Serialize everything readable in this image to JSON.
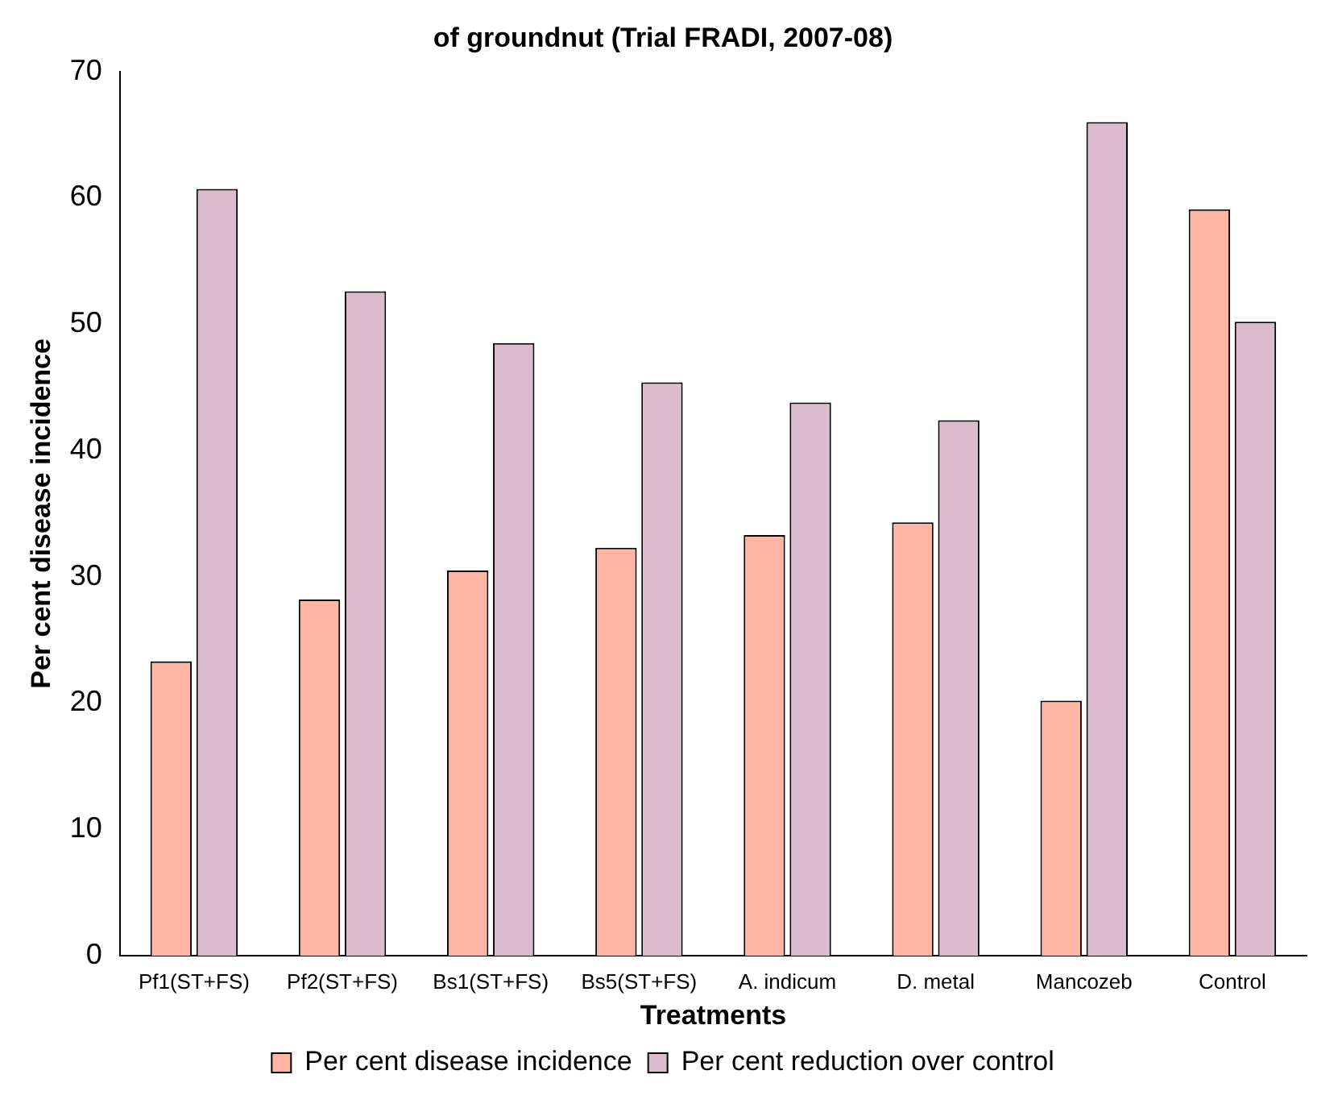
{
  "chart_data": {
    "type": "bar",
    "title": "of groundnut (Trial FRADI, 2007-08)",
    "xlabel": "Treatments",
    "ylabel": "Per cent disease incidence",
    "categories": [
      "Pf1(ST+FS)",
      "Pf2(ST+FS)",
      "Bs1(ST+FS)",
      "Bs5(ST+FS)",
      "A. indicum",
      "D. metal",
      "Mancozeb",
      "Control"
    ],
    "series": [
      {
        "name": "Per cent disease incidence",
        "color": "#ffb4a4",
        "values": [
          23.3,
          28.2,
          30.5,
          32.3,
          33.3,
          34.3,
          20.2,
          59.1
        ]
      },
      {
        "name": "Per cent reduction over control",
        "color": "#dcbccc",
        "values": [
          60.7,
          52.6,
          48.5,
          45.4,
          43.8,
          42.4,
          66.0,
          50.2
        ]
      }
    ],
    "ylim": [
      0,
      70
    ],
    "yticks": [
      0,
      10,
      20,
      30,
      40,
      50,
      60,
      70
    ],
    "grid": false,
    "legend": "bottom"
  }
}
